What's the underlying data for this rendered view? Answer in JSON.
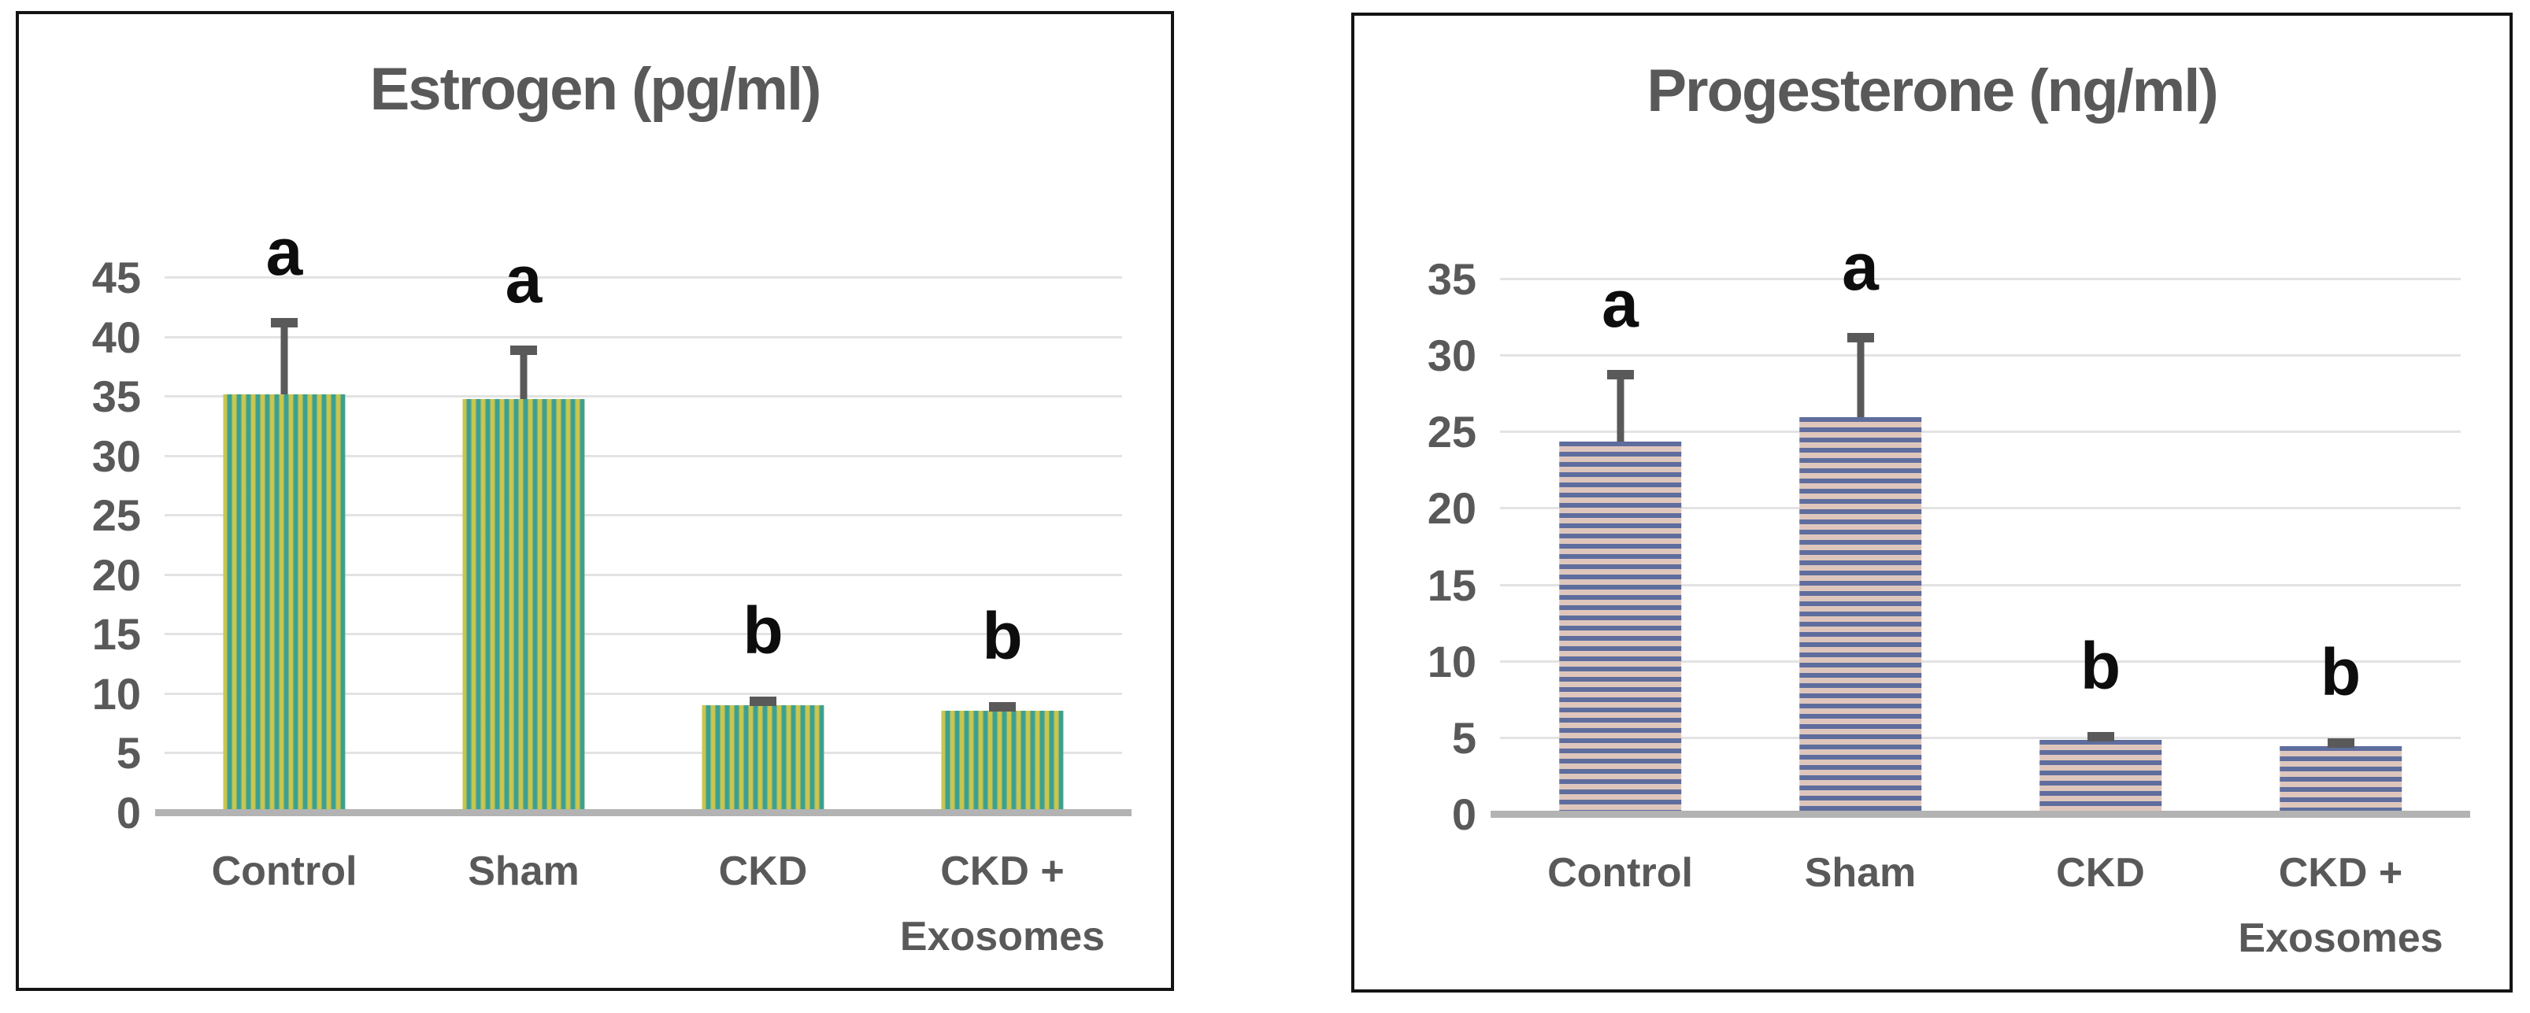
{
  "styles": {
    "text_color": "#595959",
    "letter_color": "#0d0d0d",
    "gridline_color": "#e3e3e3",
    "axis_line_color": "#b3b3b3",
    "error_bar_color": "#595959",
    "panel_border_color": "#141414",
    "panel_background": "#ffffff"
  },
  "chart_data": [
    {
      "type": "bar",
      "title": "Estrogen (pg/ml)",
      "categories": [
        "Control",
        "Sham",
        "CKD",
        "CKD +\nExosomes"
      ],
      "values": [
        35.2,
        34.8,
        9.1,
        8.6
      ],
      "error_tops": [
        41.6,
        39.3,
        9.8,
        9.3
      ],
      "sig_letters": [
        "a",
        "a",
        "b",
        "b"
      ],
      "ylim": [
        0,
        45
      ],
      "yticks": [
        0,
        5,
        10,
        15,
        20,
        25,
        30,
        35,
        40,
        45
      ],
      "xlabel": "",
      "ylabel": "",
      "grid": "horizontal",
      "legend": "none",
      "bar_style": {
        "pattern": "stripes",
        "orientation": "vertical",
        "stripe_a": "#c9c64f",
        "stripe_b": "#3ba092"
      }
    },
    {
      "type": "bar",
      "title": "Progesterone (ng/ml)",
      "categories": [
        "Control",
        "Sham",
        "CKD",
        "CKD +\nExosomes"
      ],
      "values": [
        24.4,
        26.0,
        4.9,
        4.5
      ],
      "error_tops": [
        29.1,
        31.5,
        5.4,
        5.0
      ],
      "sig_letters": [
        "a",
        "a",
        "b",
        "b"
      ],
      "ylim": [
        0,
        35
      ],
      "yticks": [
        0,
        5,
        10,
        15,
        20,
        25,
        30,
        35
      ],
      "xlabel": "",
      "ylabel": "",
      "grid": "horizontal",
      "legend": "none",
      "bar_style": {
        "pattern": "stripes",
        "orientation": "horizontal",
        "stripe_a": "#5e6d9d",
        "stripe_b": "#dfc6bd"
      }
    }
  ]
}
